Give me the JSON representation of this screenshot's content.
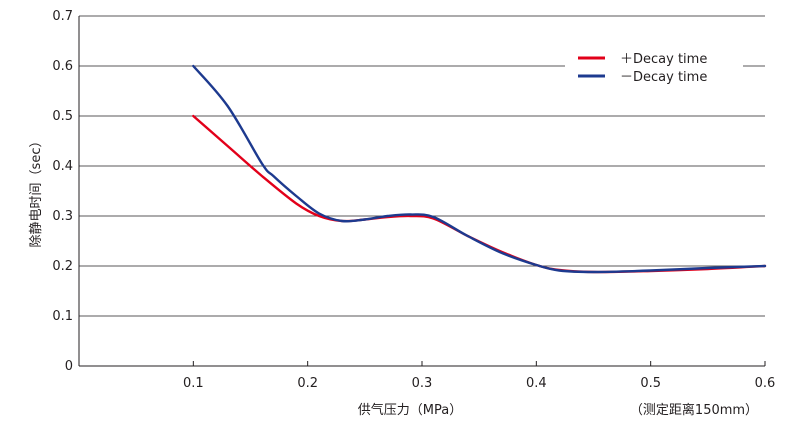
{
  "chart_data": {
    "type": "line",
    "title": "",
    "xlabel": "供气压力（MPa）",
    "ylabel": "除静电时间（sec）",
    "note": "（测定距离150mm）",
    "xlim": [
      0,
      0.6
    ],
    "ylim": [
      0,
      0.7
    ],
    "x_ticks": [
      "0.1",
      "0.2",
      "0.3",
      "0.4",
      "0.5",
      "0.6"
    ],
    "y_ticks": [
      "0",
      "0.1",
      "0.2",
      "0.3",
      "0.4",
      "0.5",
      "0.6",
      "0.7"
    ],
    "grid": "horizontal",
    "legend_position": "top-right",
    "series": [
      {
        "name": "＋Decay time",
        "color": "#e2001a",
        "x": [
          0.1,
          0.13,
          0.16,
          0.19,
          0.21,
          0.23,
          0.25,
          0.27,
          0.29,
          0.31,
          0.34,
          0.37,
          0.4,
          0.42,
          0.45,
          0.5,
          0.55,
          0.6
        ],
        "y": [
          0.5,
          0.44,
          0.38,
          0.325,
          0.3,
          0.29,
          0.293,
          0.298,
          0.3,
          0.295,
          0.26,
          0.228,
          0.202,
          0.192,
          0.188,
          0.19,
          0.194,
          0.2
        ]
      },
      {
        "name": "－Decay time",
        "color": "#1d3a8f",
        "x": [
          0.1,
          0.13,
          0.16,
          0.17,
          0.19,
          0.21,
          0.23,
          0.25,
          0.27,
          0.29,
          0.31,
          0.34,
          0.37,
          0.4,
          0.42,
          0.45,
          0.5,
          0.55,
          0.6
        ],
        "y": [
          0.6,
          0.52,
          0.405,
          0.38,
          0.34,
          0.305,
          0.29,
          0.293,
          0.3,
          0.303,
          0.298,
          0.26,
          0.226,
          0.202,
          0.191,
          0.188,
          0.191,
          0.196,
          0.2
        ]
      }
    ]
  }
}
